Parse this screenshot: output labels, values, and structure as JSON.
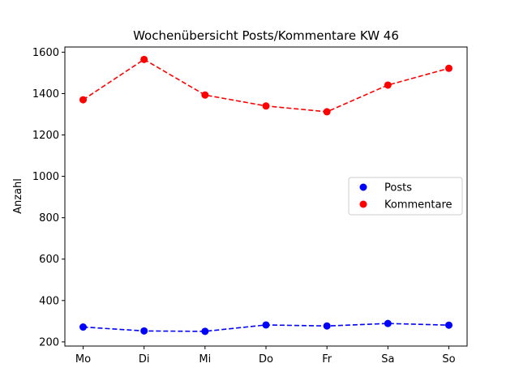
{
  "chart_data": {
    "type": "line",
    "title": "Wochenübersicht Posts/Kommentare KW 46",
    "xlabel": "",
    "ylabel": "Anzahl",
    "categories": [
      "Mo",
      "Di",
      "Mi",
      "Do",
      "Fr",
      "Sa",
      "So"
    ],
    "ylim": [
      180,
      1625
    ],
    "yticks": [
      200,
      400,
      600,
      800,
      1000,
      1200,
      1400,
      1600
    ],
    "grid": false,
    "legend_position": "center-right",
    "series": [
      {
        "name": "Posts",
        "color": "#0000ff",
        "style": "dashed-with-circle-markers",
        "values": [
          272,
          253,
          251,
          282,
          277,
          289,
          281
        ]
      },
      {
        "name": "Kommentare",
        "color": "#ff0000",
        "style": "dashed-with-circle-markers",
        "values": [
          1370,
          1565,
          1393,
          1340,
          1312,
          1441,
          1522
        ]
      }
    ]
  }
}
